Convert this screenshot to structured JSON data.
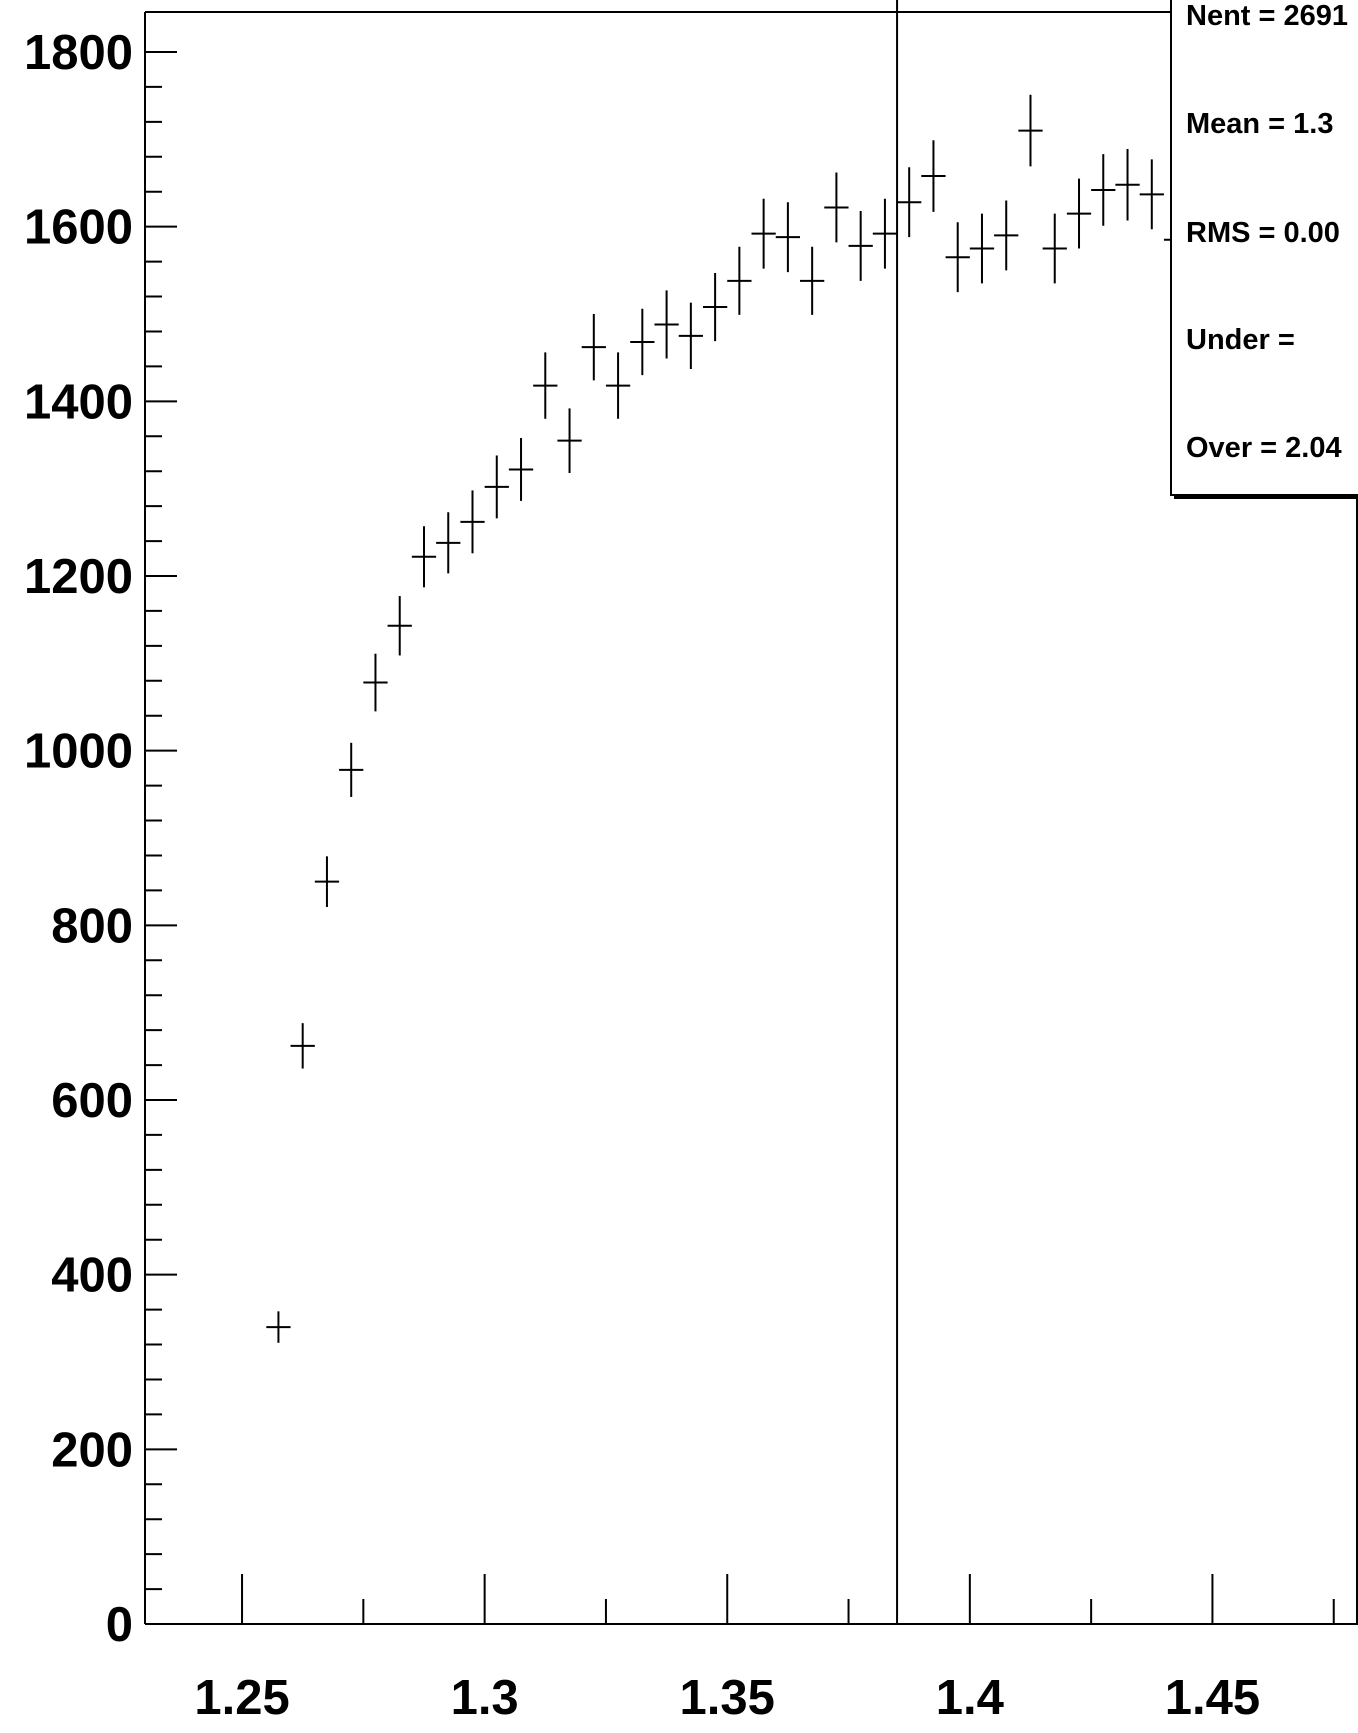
{
  "chart_data": {
    "type": "scatter",
    "title": "",
    "xlabel": "",
    "ylabel": "",
    "xlim": [
      1.23,
      1.48
    ],
    "ylim": [
      0,
      1800
    ],
    "x_ticks": [
      "1.25",
      "1.3",
      "1.35",
      "1.4",
      "1.45"
    ],
    "y_ticks": [
      "0",
      "200",
      "400",
      "600",
      "800",
      "1000",
      "1200",
      "1400",
      "1600",
      "1800"
    ],
    "grid": false,
    "error_bars": true,
    "marker_line_x": 1.385,
    "series": [
      {
        "x": [
          1.2575,
          1.2625,
          1.2675,
          1.2725,
          1.2775,
          1.2825,
          1.2875,
          1.2925,
          1.2975,
          1.3025,
          1.3075,
          1.3125,
          1.3175,
          1.3225,
          1.3275,
          1.3325,
          1.3375,
          1.3425,
          1.3475,
          1.3525,
          1.3575,
          1.3625,
          1.3675,
          1.3725,
          1.3775,
          1.3825,
          1.3875,
          1.3925,
          1.3975,
          1.4025,
          1.4075,
          1.4125,
          1.4175,
          1.4225,
          1.4275,
          1.4325,
          1.4375,
          1.4425
        ],
        "y": [
          340,
          662,
          850,
          978,
          1078,
          1143,
          1222,
          1238,
          1262,
          1302,
          1322,
          1418,
          1355,
          1462,
          1418,
          1468,
          1488,
          1475,
          1508,
          1538,
          1592,
          1588,
          1538,
          1622,
          1578,
          1592,
          1628,
          1658,
          1565,
          1575,
          1590,
          1710,
          1575,
          1615,
          1642,
          1648,
          1637,
          1585
        ],
        "yerr": [
          18,
          26,
          29,
          31,
          33,
          34,
          35,
          35,
          36,
          36,
          36,
          38,
          37,
          38,
          38,
          38,
          39,
          38,
          39,
          39,
          40,
          40,
          39,
          40,
          40,
          40,
          40,
          41,
          40,
          40,
          40,
          41,
          40,
          40,
          41,
          41,
          40,
          40
        ],
        "bin_half_width": 0.0025
      }
    ]
  },
  "stats_box": {
    "lines": [
      "Nent = 2691",
      "Mean  =  1.3",
      "RMS   = 0.00",
      "Under =",
      "Over  = 2.04"
    ]
  }
}
